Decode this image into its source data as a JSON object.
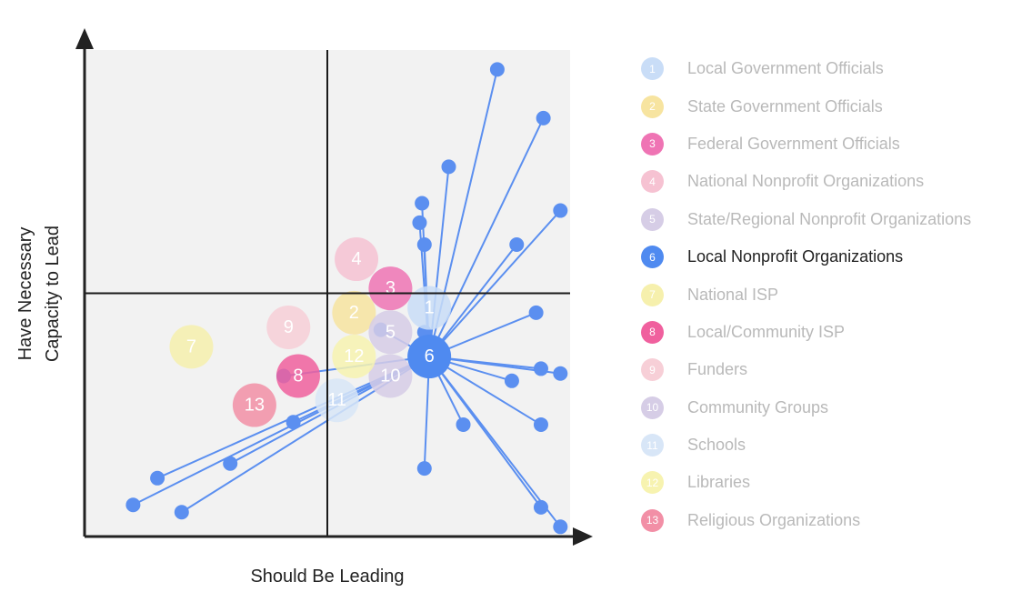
{
  "chart_data": {
    "type": "scatter",
    "xlabel": "Should Be Leading",
    "ylabel_lines": [
      "Have Necessary",
      "Capacity to Lead"
    ],
    "xlim": [
      0,
      100
    ],
    "ylim": [
      0,
      100
    ],
    "midlines": {
      "x": 50,
      "y": 50
    },
    "grid": false,
    "legend_position": "right",
    "selected_id": "6",
    "groups": [
      {
        "id": "1",
        "name": "Local Government Officials",
        "color": "#c9ddf7",
        "x": 71,
        "y": 47
      },
      {
        "id": "2",
        "name": "State Government Officials",
        "color": "#f7e4a0",
        "x": 55.5,
        "y": 46
      },
      {
        "id": "3",
        "name": "Federal Government Officials",
        "color": "#ef74b4",
        "x": 63,
        "y": 51
      },
      {
        "id": "4",
        "name": "National Nonprofit Organizations",
        "color": "#f6c2d2",
        "x": 56,
        "y": 57
      },
      {
        "id": "5",
        "name": "State/Regional Nonprofit Organizations",
        "color": "#d6cde6",
        "x": 63,
        "y": 42
      },
      {
        "id": "6",
        "name": "Local Nonprofit Organizations",
        "color": "#4f8af0",
        "x": 71,
        "y": 37
      },
      {
        "id": "7",
        "name": "National ISP",
        "color": "#f6f0ad",
        "x": 22,
        "y": 39
      },
      {
        "id": "8",
        "name": "Local/Community ISP",
        "color": "#f0609e",
        "x": 44,
        "y": 33
      },
      {
        "id": "9",
        "name": "Funders",
        "color": "#f7cfd7",
        "x": 42,
        "y": 43
      },
      {
        "id": "10",
        "name": "Community Groups",
        "color": "#d6cde6",
        "x": 63,
        "y": 33
      },
      {
        "id": "11",
        "name": "Schools",
        "color": "#d8e6f7",
        "x": 52,
        "y": 28
      },
      {
        "id": "12",
        "name": "Libraries",
        "color": "#f7f3b0",
        "x": 55.5,
        "y": 37
      },
      {
        "id": "13",
        "name": "Religious Organizations",
        "color": "#f28fa6",
        "x": 35,
        "y": 27
      }
    ],
    "responses": [
      [
        85,
        96
      ],
      [
        94.5,
        86
      ],
      [
        75,
        76
      ],
      [
        69.5,
        68.5
      ],
      [
        69,
        64.5
      ],
      [
        98,
        67
      ],
      [
        70,
        60
      ],
      [
        89,
        60
      ],
      [
        93,
        46
      ],
      [
        61,
        42.5
      ],
      [
        70,
        42
      ],
      [
        94,
        34.5
      ],
      [
        98,
        33.5
      ],
      [
        88,
        32
      ],
      [
        78,
        23
      ],
      [
        94,
        23
      ],
      [
        70,
        14
      ],
      [
        94,
        6
      ],
      [
        98,
        2
      ],
      [
        41,
        33
      ],
      [
        43,
        23.5
      ],
      [
        30,
        15
      ],
      [
        15,
        12
      ],
      [
        20,
        5
      ],
      [
        10,
        6.5
      ]
    ]
  }
}
